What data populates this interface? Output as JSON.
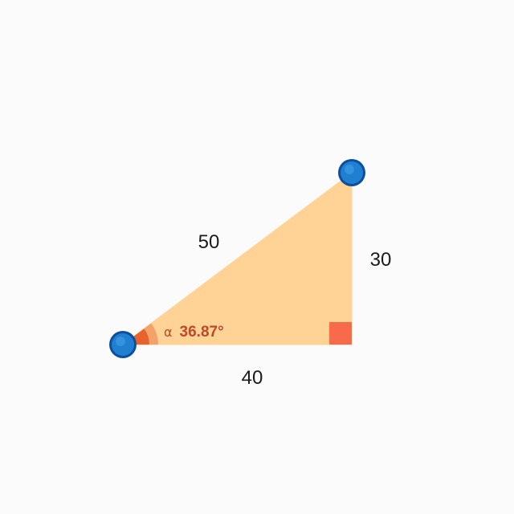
{
  "triangle": {
    "hypotenuse_label": "50",
    "vertical_side_label": "30",
    "horizontal_side_label": "40",
    "angle_symbol": "α",
    "angle_value": "36.87°"
  },
  "colors": {
    "fill": "#ffd396",
    "angle_wedge": "#e8622f",
    "right_angle_marker": "#f96a4a",
    "handle": "#1f7fd1",
    "handle_stroke": "#0e4f9c",
    "angle_text": "#c0472c",
    "background": "#fbfbfb"
  }
}
